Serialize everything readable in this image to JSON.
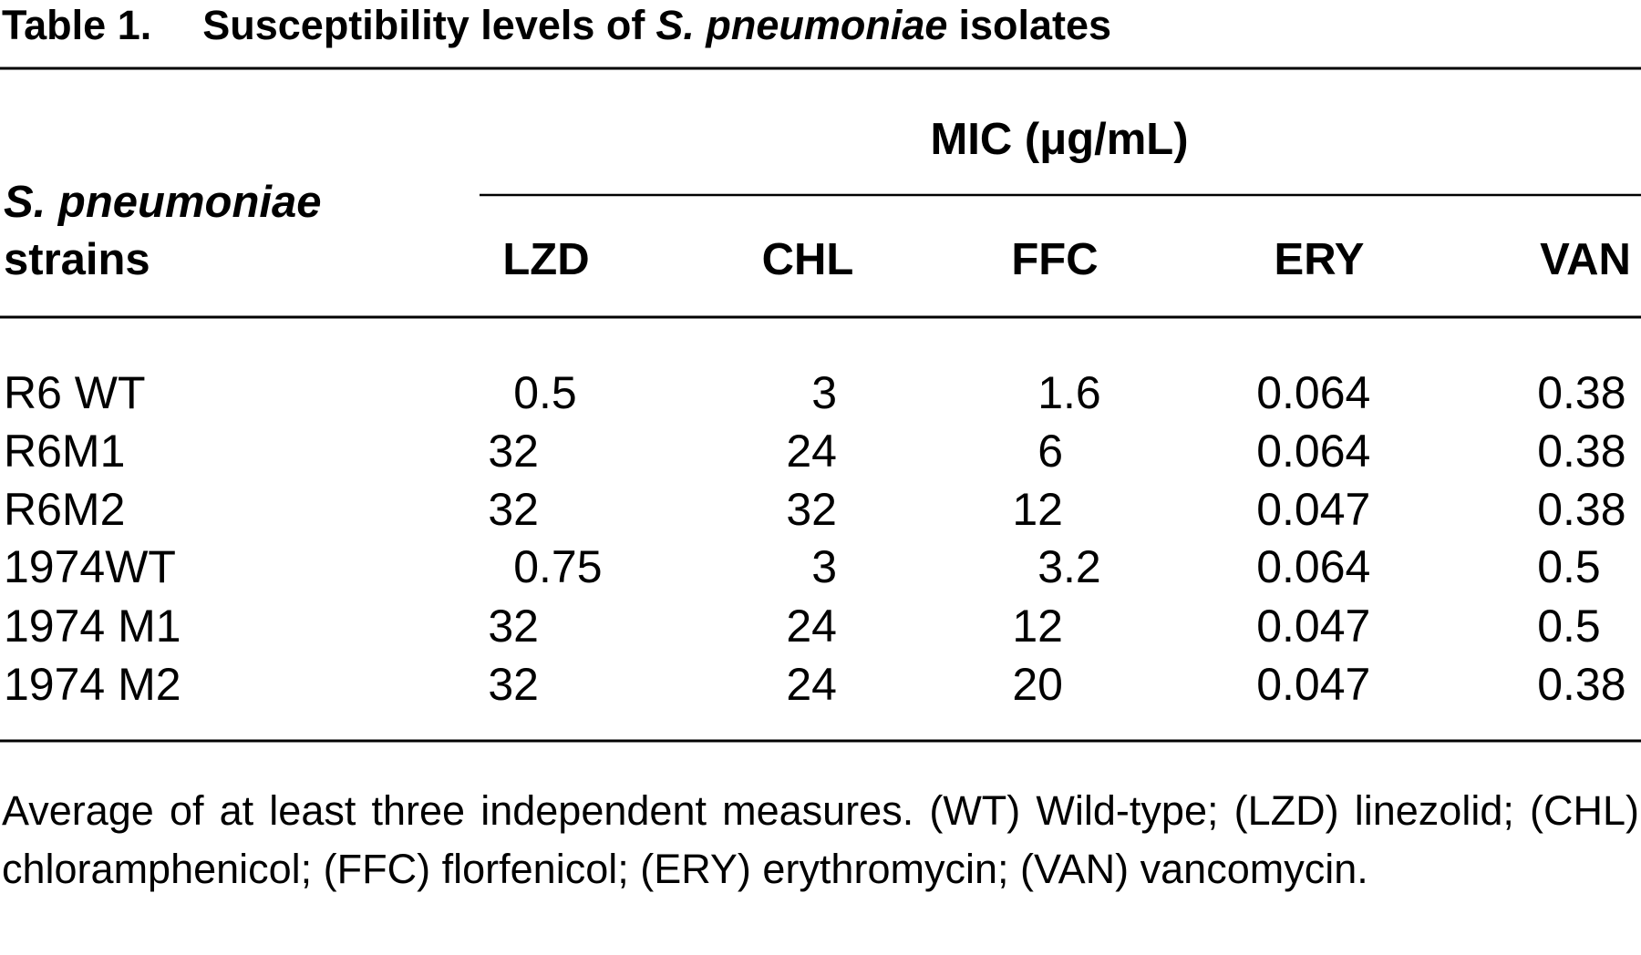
{
  "title": {
    "label": "Table 1.",
    "text": "Susceptibility levels of",
    "organism": "S. pneumoniae",
    "suffix": "isolates"
  },
  "table": {
    "row_header": {
      "organism": "S. pneumoniae",
      "text": "strains"
    },
    "group_header": "MIC (μg/mL)",
    "columns": [
      "LZD",
      "CHL",
      "FFC",
      "ERY",
      "VAN"
    ],
    "rows": [
      [
        "R6 WT",
        "0.5",
        "3",
        "1.6",
        "0.064",
        "0.38"
      ],
      [
        "R6M1",
        "32",
        "24",
        "6",
        "0.064",
        "0.38"
      ],
      [
        "R6M2",
        "32",
        "32",
        "12",
        "0.047",
        "0.38"
      ],
      [
        "1974WT",
        "0.75",
        "3",
        "3.2",
        "0.064",
        "0.5"
      ],
      [
        "1974 M1",
        "32",
        "24",
        "12",
        "0.047",
        "0.5"
      ],
      [
        "1974 M2",
        "32",
        "24",
        "20",
        "0.047",
        "0.38"
      ]
    ]
  },
  "footnote": "Average of at least three independent measures. (WT) Wild-type; (LZD) linezolid; (CHL) chloramphenicol; (FFC) florfenicol; (ERY) erythromycin; (VAN) vancomycin."
}
